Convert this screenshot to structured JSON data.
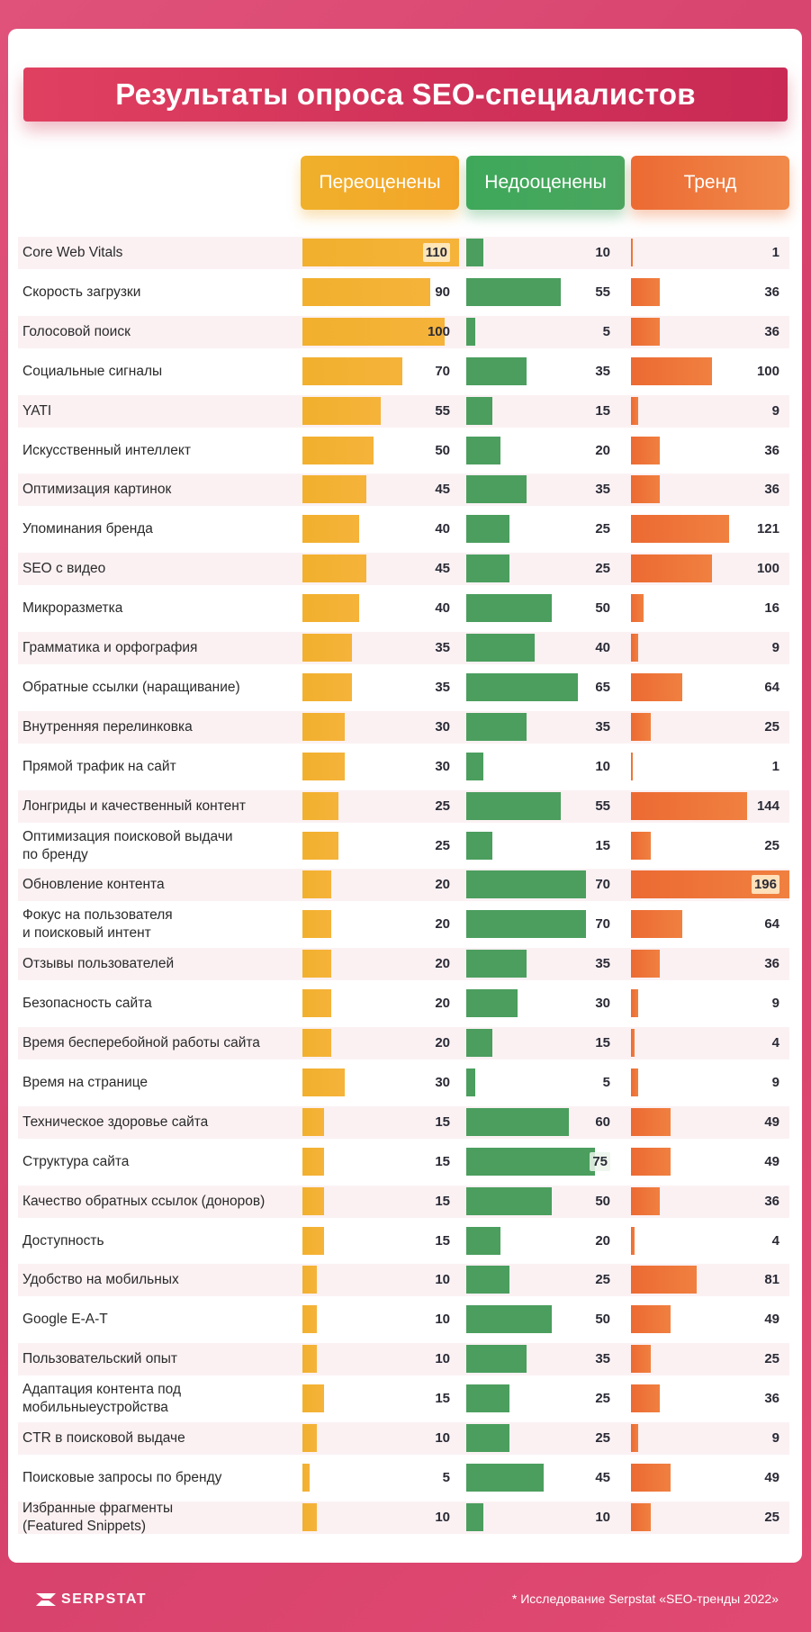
{
  "title": "Результаты опроса SEO-специалистов",
  "columns": {
    "overrated": "Переоценены",
    "underrated": "Недооценены",
    "trend": "Тренд"
  },
  "colors": {
    "overrated": "#f2b02e",
    "underrated": "#4b9e5e",
    "trend": "#ec6a33",
    "title_bg": "#d2335a",
    "background": "#d43f6a"
  },
  "footer": {
    "logo": "SERPSTAT",
    "note": "* Исследование Serpstat «SEO-тренды 2022»"
  },
  "chart_data": {
    "type": "bar",
    "title": "Результаты опроса SEO-специалистов",
    "categories": [
      "Core Web Vitals",
      "Скорость загрузки",
      "Голосовой поиск",
      "Социальные сигналы",
      " YATI",
      "Искусственный интеллект",
      "Оптимизация картинок",
      "Упоминания бренда",
      "SEO с видео",
      "Микроразметка",
      "Грамматика и орфография",
      "Обратные ссылки (наращивание)",
      "Внутренняя перелинковка",
      "Прямой трафик на сайт",
      "Лонгриды и качественный контент",
      "Оптимизация поисковой выдачи\nпо бренду",
      "Обновление контента",
      "Фокус на пользователя\nи поисковый интент",
      "Отзывы пользователей",
      "Безопасность сайта",
      "Время бесперебойной работы сайта",
      "Время на странице",
      "Техническое здоровье сайта",
      "Структура сайта",
      "Качество обратных ссылок (доноров)",
      "Доступность",
      "Удобство на мобильных",
      "Google E-A-T",
      "Пользовательский опыт",
      "Адаптация контента под\nмобильныеустройства",
      "CTR в поисковой выдаче",
      "Поисковые запросы по бренду",
      "Избранные фрагменты\n(Featured Snippets)"
    ],
    "series": [
      {
        "name": "Переоценены",
        "values": [
          110,
          90,
          100,
          70,
          55,
          50,
          45,
          40,
          45,
          40,
          35,
          35,
          30,
          30,
          25,
          25,
          20,
          20,
          20,
          20,
          20,
          30,
          15,
          15,
          15,
          15,
          10,
          10,
          10,
          15,
          10,
          5,
          10
        ]
      },
      {
        "name": "Недооценены",
        "values": [
          10,
          55,
          5,
          35,
          15,
          20,
          35,
          25,
          25,
          50,
          40,
          65,
          35,
          10,
          55,
          15,
          70,
          70,
          35,
          30,
          15,
          5,
          60,
          75,
          50,
          20,
          25,
          50,
          35,
          25,
          25,
          45,
          10
        ]
      },
      {
        "name": "Тренд",
        "values": [
          1,
          36,
          36,
          100,
          9,
          36,
          36,
          121,
          100,
          16,
          9,
          64,
          25,
          1,
          144,
          25,
          196,
          64,
          36,
          9,
          4,
          9,
          49,
          49,
          36,
          4,
          81,
          49,
          25,
          36,
          9,
          49,
          25
        ]
      }
    ]
  }
}
